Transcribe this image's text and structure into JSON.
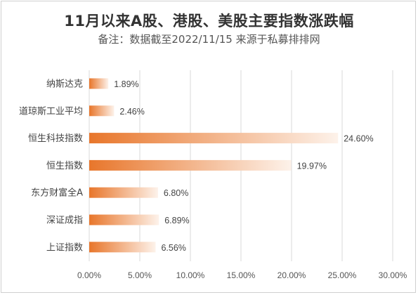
{
  "chart_data": {
    "type": "bar",
    "orientation": "horizontal",
    "title": "11月以来A股、港股、美股主要指数涨跌幅",
    "subtitle": "备注：数据截至2022/11/15 来源于私募排排网",
    "categories": [
      "纳斯达克",
      "道琼斯工业平均",
      "恒生科技指数",
      "恒生指数",
      "东方财富全A",
      "深证成指",
      "上证指数"
    ],
    "values": [
      1.89,
      2.46,
      24.6,
      19.97,
      6.8,
      6.89,
      6.56
    ],
    "value_labels": [
      "1.89%",
      "2.46%",
      "24.60%",
      "19.97%",
      "6.80%",
      "6.89%",
      "6.56%"
    ],
    "xlim": [
      0,
      30
    ],
    "xticks": [
      "0.00%",
      "5.00%",
      "10.00%",
      "15.00%",
      "20.00%",
      "25.00%",
      "30.00%"
    ],
    "xtick_values": [
      0,
      5,
      10,
      15,
      20,
      25,
      30
    ],
    "grid": true,
    "bar_color_start": "#e8762b",
    "bar_color_end": "#fdf2ea",
    "grid_color": "#d9d9d9"
  }
}
